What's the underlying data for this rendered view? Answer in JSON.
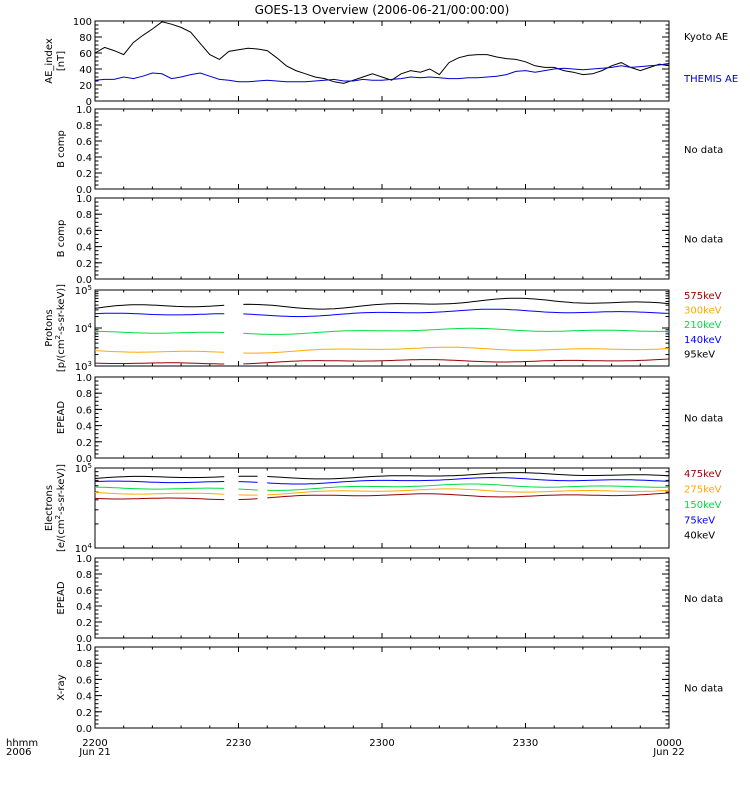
{
  "title": "GOES-13 Overview (2006-06-21/00:00:00)",
  "x_axis": {
    "row1_label": "hhmm",
    "row2_label": "2006",
    "ticks": [
      {
        "t": 0,
        "top": "2200",
        "bottom": "Jun 21"
      },
      {
        "t": 30,
        "top": "2230",
        "bottom": ""
      },
      {
        "t": 60,
        "top": "2300",
        "bottom": ""
      },
      {
        "t": 90,
        "top": "2330",
        "bottom": ""
      },
      {
        "t": 120,
        "top": "0000",
        "bottom": "Jun 22"
      }
    ],
    "range_minutes": [
      0,
      120
    ]
  },
  "chart_data": [
    {
      "type": "line",
      "panel": "ae",
      "ylabel_lines": [
        "AE_index",
        "[nT]"
      ],
      "ylim": [
        0,
        100
      ],
      "yticks": [
        0,
        20,
        40,
        60,
        80,
        100
      ],
      "yticklabels": [
        "0",
        "20",
        "40",
        "60",
        "80",
        "100"
      ],
      "ymajor": 20,
      "yminor": 5,
      "x_units": "minutes after 2006-06-21 22:00",
      "series": [
        {
          "name": "Kyoto AE",
          "color": "#000000",
          "x": [
            0,
            2,
            4,
            6,
            8,
            10,
            12,
            14,
            16,
            18,
            20,
            22,
            24,
            26,
            28,
            30,
            32,
            34,
            36,
            38,
            40,
            42,
            44,
            46,
            48,
            50,
            52,
            54,
            56,
            58,
            60,
            62,
            64,
            66,
            68,
            70,
            72,
            74,
            76,
            78,
            80,
            82,
            84,
            86,
            88,
            90,
            92,
            94,
            96,
            98,
            100,
            102,
            104,
            106,
            108,
            110,
            112,
            114,
            116,
            118,
            120
          ],
          "y": [
            60,
            67,
            63,
            58,
            73,
            82,
            90,
            99,
            96,
            92,
            86,
            72,
            58,
            52,
            62,
            64,
            66,
            65,
            63,
            54,
            44,
            38,
            34,
            30,
            28,
            24,
            22,
            26,
            30,
            34,
            30,
            26,
            34,
            38,
            36,
            40,
            33,
            48,
            54,
            57,
            58,
            58,
            55,
            53,
            52,
            49,
            44,
            42,
            42,
            38,
            36,
            33,
            34,
            38,
            44,
            48,
            42,
            38,
            42,
            46,
            44
          ]
        },
        {
          "name": "THEMIS AE",
          "color": "#0000cc",
          "x": [
            0,
            2,
            4,
            6,
            8,
            10,
            12,
            14,
            16,
            18,
            20,
            22,
            24,
            26,
            28,
            30,
            32,
            34,
            36,
            38,
            40,
            42,
            44,
            46,
            48,
            50,
            52,
            54,
            56,
            58,
            60,
            62,
            64,
            66,
            68,
            70,
            72,
            74,
            76,
            78,
            80,
            82,
            84,
            86,
            88,
            90,
            92,
            94,
            96,
            98,
            100,
            102,
            104,
            106,
            108,
            110,
            112,
            114,
            116,
            118,
            120
          ],
          "y": [
            26,
            27,
            27,
            30,
            28,
            31,
            35,
            34,
            28,
            30,
            33,
            35,
            31,
            27,
            26,
            24,
            24,
            25,
            26,
            25,
            24,
            24,
            24,
            25,
            26,
            27,
            25,
            25,
            27,
            26,
            26,
            27,
            28,
            30,
            29,
            30,
            29,
            28,
            28,
            29,
            29,
            30,
            31,
            33,
            37,
            38,
            36,
            38,
            40,
            41,
            40,
            39,
            40,
            41,
            42,
            44,
            42,
            43,
            44,
            45,
            47
          ]
        }
      ]
    },
    {
      "type": "line",
      "panel": "b-comp-1",
      "ylabel_lines": [
        "B comp"
      ],
      "ylim": [
        0,
        1
      ],
      "yticklabels": [
        "0.0",
        "0.2",
        "0.4",
        "0.6",
        "0.8",
        "1.0"
      ],
      "no_data": "No data"
    },
    {
      "type": "line",
      "panel": "b-comp-2",
      "ylabel_lines": [
        "B comp"
      ],
      "ylim": [
        0,
        1
      ],
      "yticklabels": [
        "0.0",
        "0.2",
        "0.4",
        "0.6",
        "0.8",
        "1.0"
      ],
      "no_data": "No data"
    },
    {
      "type": "line",
      "panel": "protons",
      "log": true,
      "ylabel_lines": [
        "Protons",
        "[p/(cm²-s-sr-keV)]"
      ],
      "ylim": [
        1000,
        100000
      ],
      "x_units": "minutes after 2006-06-21 22:00",
      "gaps": [
        [
          28,
          29
        ],
        [
          29.6,
          30.6
        ]
      ],
      "series": [
        {
          "name": "95keV",
          "color": "#000000",
          "base": 40000,
          "amp": 0.18
        },
        {
          "name": "140keV",
          "color": "#0000ff",
          "base": 24000,
          "amp": 0.12
        },
        {
          "name": "210keV",
          "color": "#00dd44",
          "base": 8000,
          "amp": 0.1
        },
        {
          "name": "300keV",
          "color": "#ffaa00",
          "base": 2600,
          "amp": 0.1
        },
        {
          "name": "575keV",
          "color": "#990000",
          "base": 1300,
          "amp": 0.08
        }
      ],
      "legend_order": [
        "575keV",
        "300keV",
        "210keV",
        "140keV",
        "95keV"
      ]
    },
    {
      "type": "line",
      "panel": "epead-1",
      "ylabel_lines": [
        "EPEAD"
      ],
      "ylim": [
        0,
        1
      ],
      "yticklabels": [
        "0.0",
        "0.2",
        "0.4",
        "0.6",
        "0.8",
        "1.0"
      ],
      "no_data": "No data"
    },
    {
      "type": "line",
      "panel": "electrons",
      "log": true,
      "ylabel_lines": [
        "Electrons",
        "[e/(cm²-s-sr-keV)]"
      ],
      "ylim": [
        10000,
        100000
      ],
      "x_units": "minutes after 2006-06-21 22:00",
      "gaps": [
        [
          28,
          29
        ],
        [
          34.4,
          35.4
        ]
      ],
      "series": [
        {
          "name": "40keV",
          "color": "#000000",
          "base": 78000,
          "amp": 0.05
        },
        {
          "name": "75keV",
          "color": "#0000ff",
          "base": 68000,
          "amp": 0.05
        },
        {
          "name": "150keV",
          "color": "#00dd44",
          "base": 57000,
          "amp": 0.05
        },
        {
          "name": "275keV",
          "color": "#ffaa00",
          "base": 50000,
          "amp": 0.05
        },
        {
          "name": "475keV",
          "color": "#990000",
          "base": 44000,
          "amp": 0.05
        }
      ],
      "legend_order": [
        "475keV",
        "275keV",
        "150keV",
        "75keV",
        "40keV"
      ]
    },
    {
      "type": "line",
      "panel": "epead-2",
      "ylabel_lines": [
        "EPEAD"
      ],
      "ylim": [
        0,
        1
      ],
      "yticklabels": [
        "0.0",
        "0.2",
        "0.4",
        "0.6",
        "0.8",
        "1.0"
      ],
      "no_data": "No data"
    },
    {
      "type": "line",
      "panel": "x-ray",
      "ylabel_lines": [
        "X-ray"
      ],
      "ylim": [
        0,
        1
      ],
      "yticklabels": [
        "0.0",
        "0.2",
        "0.4",
        "0.6",
        "0.8",
        "1.0"
      ],
      "no_data": "No data"
    }
  ]
}
